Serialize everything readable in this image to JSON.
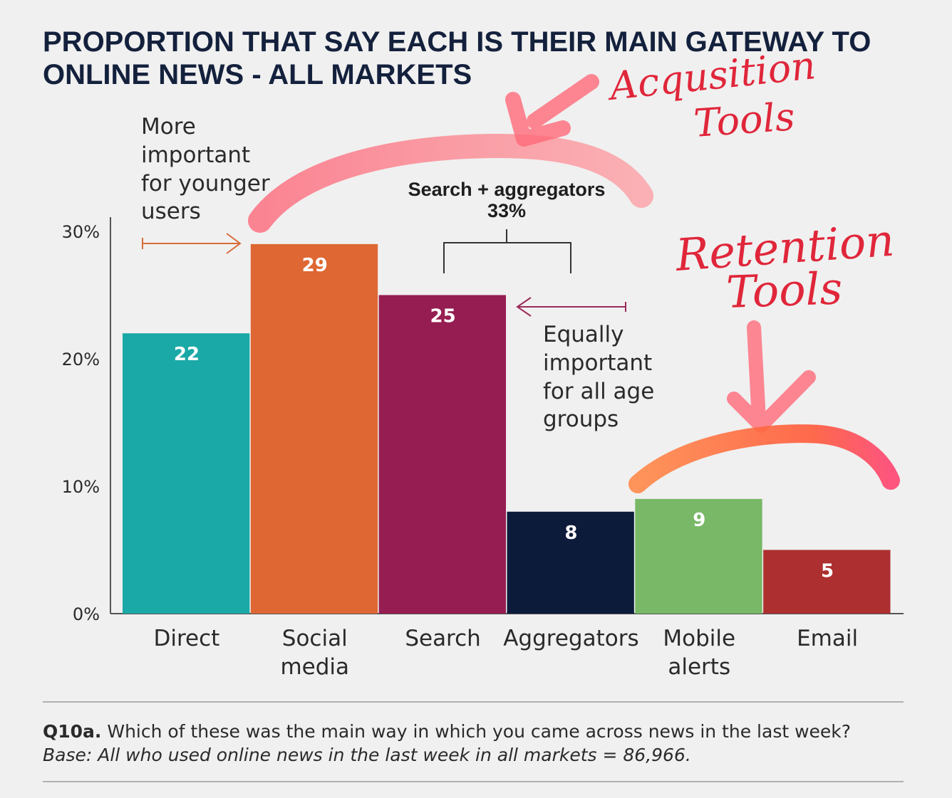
{
  "title_lines": [
    "PROPORTION THAT SAY EACH IS THEIR MAIN GATEWAY TO",
    "ONLINE NEWS - ALL MARKETS"
  ],
  "chart_data": {
    "type": "bar",
    "title": "PROPORTION THAT SAY EACH IS THEIR MAIN GATEWAY TO ONLINE NEWS - ALL MARKETS",
    "categories": [
      [
        "Direct"
      ],
      [
        "Social",
        "media"
      ],
      [
        "Search"
      ],
      [
        "Aggregators"
      ],
      [
        "Mobile",
        "alerts"
      ],
      [
        "Email"
      ]
    ],
    "values": [
      22,
      29,
      25,
      8,
      9,
      5
    ],
    "value_labels": [
      "22",
      "29",
      "25",
      "8",
      "9",
      "5"
    ],
    "colors": [
      "#1aa9a7",
      "#de6733",
      "#961d52",
      "#0d1b3a",
      "#78b866",
      "#ad2f2f"
    ],
    "yticks": [
      0,
      10,
      20,
      30
    ],
    "ytick_labels": [
      "0%",
      "10%",
      "20%",
      "30%"
    ],
    "ylim": [
      0,
      30
    ],
    "xlabel": "",
    "ylabel": "",
    "grid": false,
    "annotations": {
      "younger_note": [
        "More",
        "important",
        "for younger",
        "users"
      ],
      "equal_note": [
        "Equally",
        "important",
        "for all age",
        "groups"
      ],
      "bracket_title": "Search + aggregators",
      "bracket_value": "33%"
    }
  },
  "handwriting": {
    "acquisition_line1": "Acqusition",
    "acquisition_line2": "Tools",
    "retention_line1": "Retention",
    "retention_line2": "Tools"
  },
  "colors": {
    "title": "#14213d",
    "orange_arrow": "#d86b3a",
    "purple_arrow": "#9b2b5a",
    "highlight_pink": "#ff6b7a",
    "highlight_orange": "#ff7a40",
    "ink_red": "#e0263a"
  },
  "footer": {
    "question_id": "Q10a.",
    "question_text": " Which of these was the main way in which you came across news in the last week?",
    "base_text": "Base: All who used online news in the last week in all markets = 86,966."
  }
}
